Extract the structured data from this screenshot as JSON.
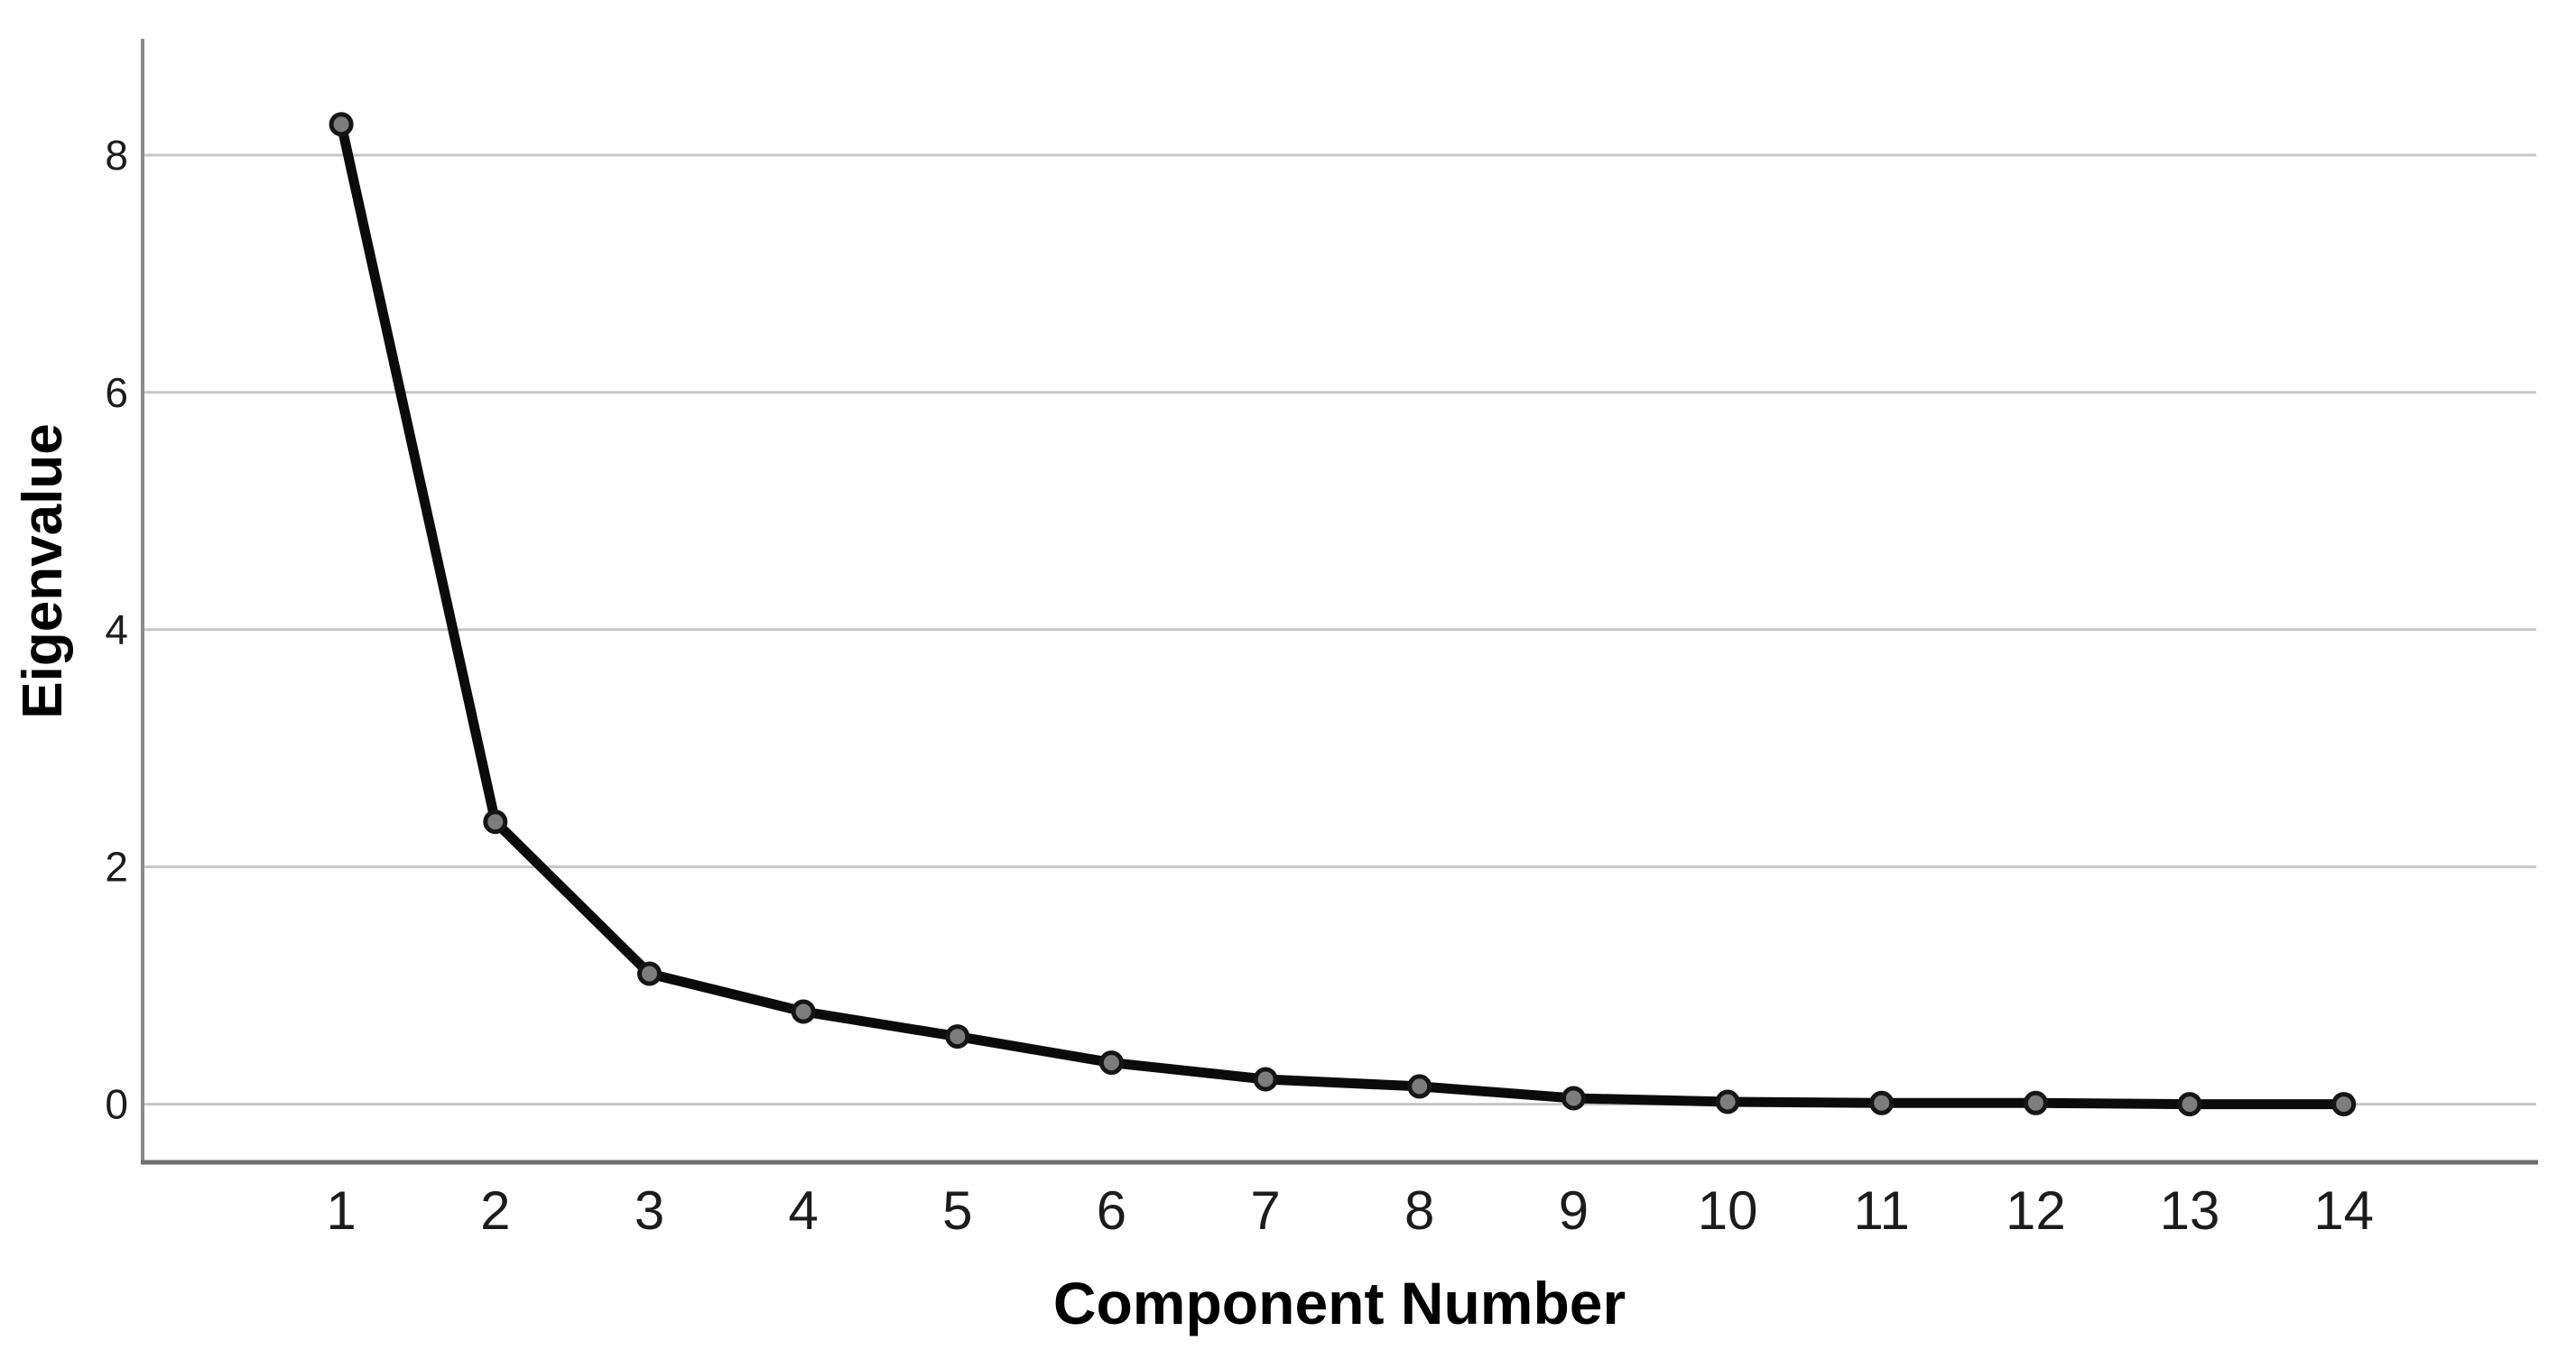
{
  "figure": {
    "kind": "scree-plot",
    "background": "#ffffff"
  },
  "chart_data": {
    "type": "line",
    "title": "",
    "xlabel": "Component Number",
    "ylabel": "Eigenvalue",
    "x": [
      1,
      2,
      3,
      4,
      5,
      6,
      7,
      8,
      9,
      10,
      11,
      12,
      13,
      14
    ],
    "x_tick_labels": [
      "1",
      "2",
      "3",
      "4",
      "5",
      "6",
      "7",
      "8",
      "9",
      "10",
      "11",
      "12",
      "13",
      "14"
    ],
    "values": [
      8.26,
      2.38,
      1.1,
      0.78,
      0.57,
      0.35,
      0.21,
      0.15,
      0.05,
      0.02,
      0.01,
      0.01,
      0.0,
      0.0
    ],
    "y_ticks": [
      0,
      2,
      4,
      6,
      8
    ],
    "y_tick_labels": [
      "0",
      "2",
      "4",
      "6",
      "8"
    ],
    "ylim": [
      -0.49,
      8.98
    ],
    "xlim": [
      -0.29,
      15.25
    ],
    "grid": "horizontal",
    "legend": "none",
    "markers": "circle",
    "colors": {
      "line": "#0b0b0b",
      "marker_fill": "#7d7d7d",
      "marker_stroke": "#161616",
      "gridline": "#c6c6c6",
      "y_axis": "#8a8a8a",
      "x_axis": "#6f6f6f",
      "tick_text": "#1c1c1c",
      "title_text": "#000000",
      "background": "#ffffff"
    }
  }
}
